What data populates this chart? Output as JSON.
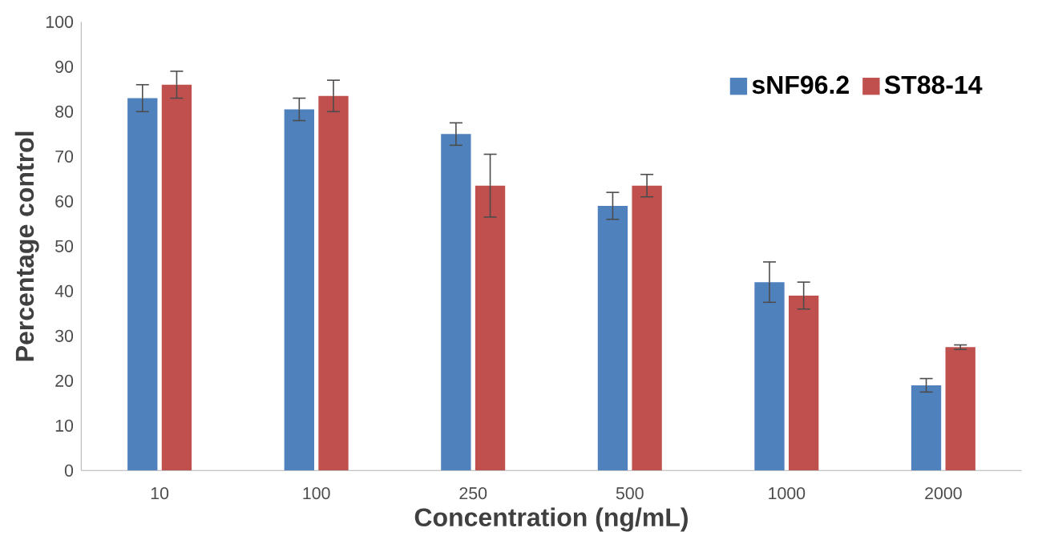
{
  "chart_data": {
    "type": "bar",
    "xlabel": "Concentration (ng/mL)",
    "ylabel": "Percentage control",
    "categories": [
      "10",
      "100",
      "250",
      "500",
      "1000",
      "2000"
    ],
    "series": [
      {
        "name": "sNF96.2",
        "color": "#4f81bd",
        "values": [
          83,
          80.5,
          75,
          59,
          42,
          19
        ],
        "errors": [
          3,
          2.5,
          2.5,
          3,
          4.5,
          1.5
        ]
      },
      {
        "name": "ST88-14",
        "color": "#c0504d",
        "values": [
          86,
          83.5,
          63.5,
          63.5,
          39,
          27.5
        ],
        "errors": [
          3,
          3.5,
          7,
          2.5,
          3,
          0.5
        ]
      }
    ],
    "ylim": [
      0,
      100
    ],
    "yticks": [
      0,
      10,
      20,
      30,
      40,
      50,
      60,
      70,
      80,
      90,
      100
    ],
    "grid": false,
    "legend": "top right"
  }
}
